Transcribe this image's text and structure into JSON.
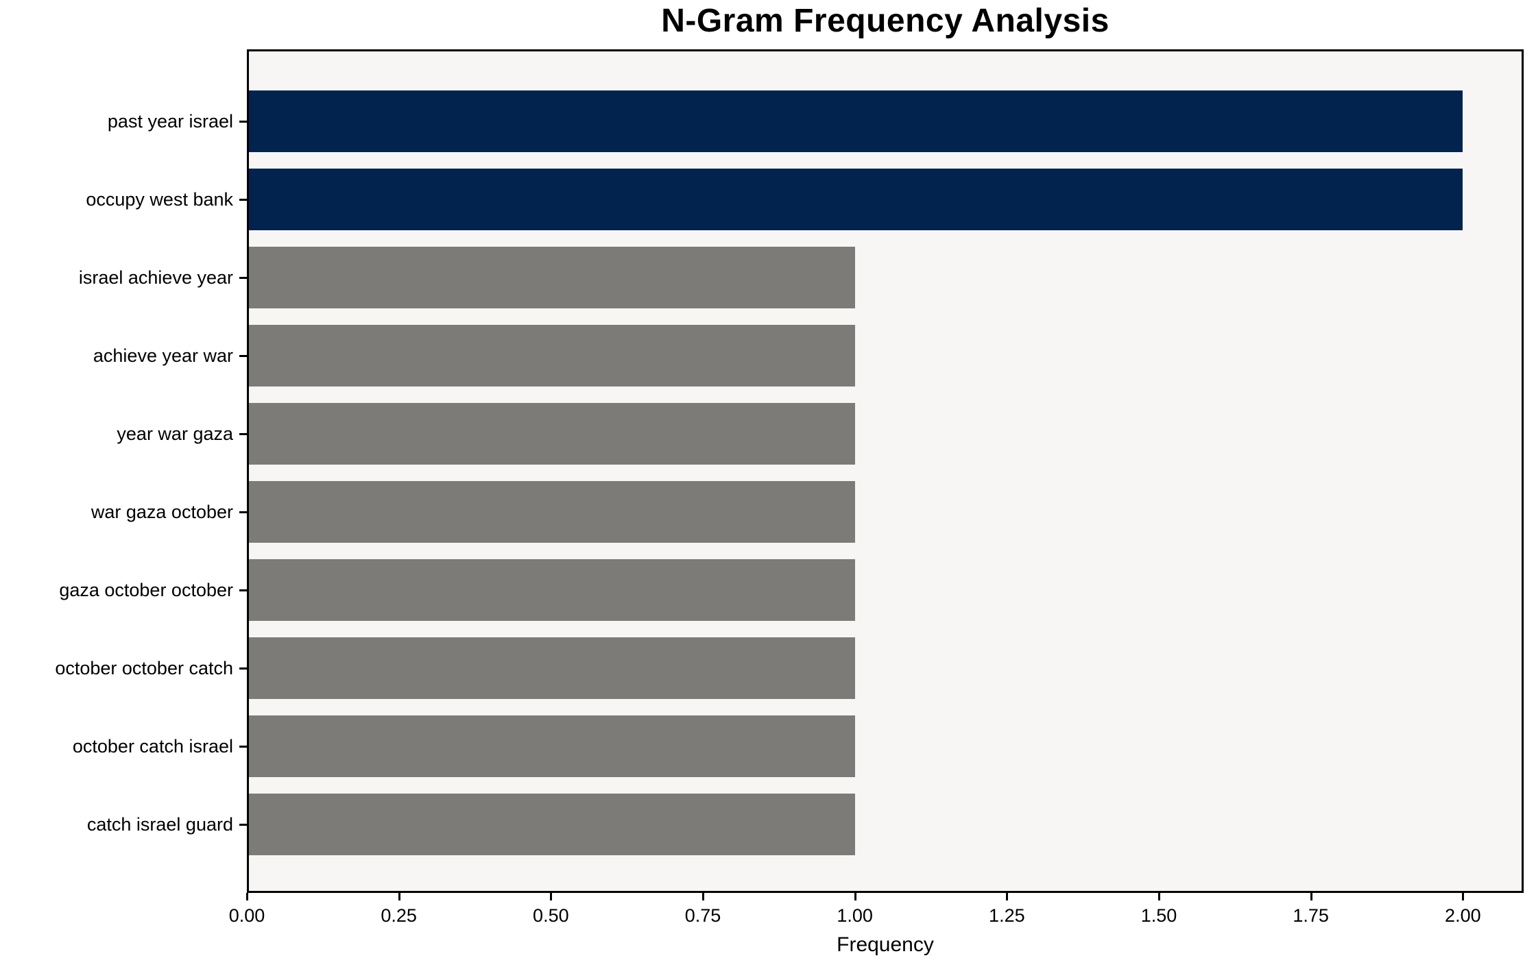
{
  "chart_data": {
    "type": "bar",
    "orientation": "horizontal",
    "title": "N-Gram Frequency Analysis",
    "xlabel": "Frequency",
    "ylabel": "",
    "categories": [
      "past year israel",
      "occupy west bank",
      "israel achieve year",
      "achieve year war",
      "year war gaza",
      "war gaza october",
      "gaza october october",
      "october october catch",
      "october catch israel",
      "catch israel guard"
    ],
    "values": [
      2,
      2,
      1,
      1,
      1,
      1,
      1,
      1,
      1,
      1
    ],
    "bar_colors": [
      "#02234e",
      "#02234e",
      "#7c7b77",
      "#7c7b77",
      "#7c7b77",
      "#7c7b77",
      "#7c7b77",
      "#7c7b77",
      "#7c7b77",
      "#7c7b77"
    ],
    "xlim": [
      0,
      2.1
    ],
    "xticks": [
      {
        "value": 0.0,
        "label": "0.00"
      },
      {
        "value": 0.25,
        "label": "0.25"
      },
      {
        "value": 0.5,
        "label": "0.50"
      },
      {
        "value": 0.75,
        "label": "0.75"
      },
      {
        "value": 1.0,
        "label": "1.00"
      },
      {
        "value": 1.25,
        "label": "1.25"
      },
      {
        "value": 1.5,
        "label": "1.50"
      },
      {
        "value": 1.75,
        "label": "1.75"
      },
      {
        "value": 2.0,
        "label": "2.00"
      }
    ],
    "grid": false,
    "legend": "none",
    "colors": {
      "highlight_bar": "#02234e",
      "default_bar": "#7c7b77",
      "plot_background": "#f7f6f5",
      "page_background": "#ffffff",
      "axis": "#000000",
      "text": "#000000"
    }
  }
}
